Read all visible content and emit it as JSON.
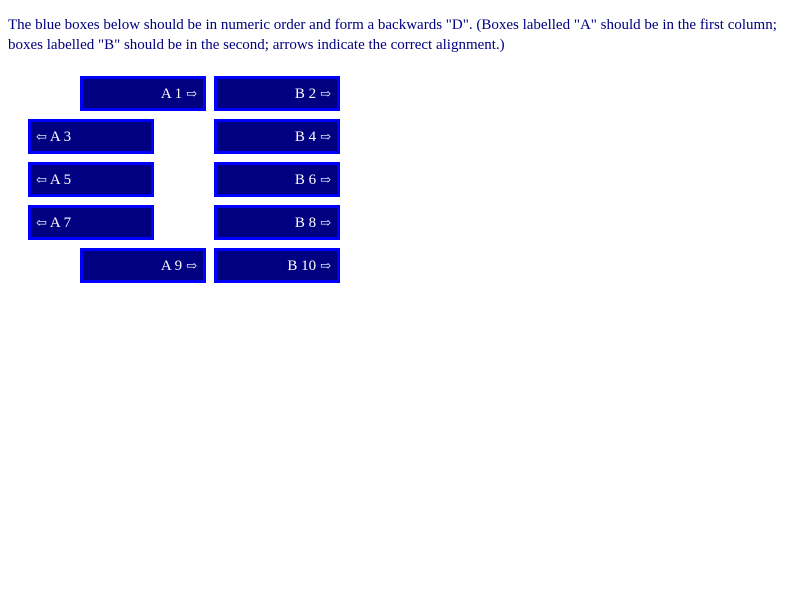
{
  "instructions": "The blue boxes below should be in numeric order and form a backwards \"D\". (Boxes labelled \"A\" should be in the first column; boxes labelled \"B\" should be in the second; arrows indicate the correct alignment.)",
  "colors": {
    "text": "#000080",
    "box_fill": "#000080",
    "box_border": "#0000ff",
    "box_text": "#ffffff"
  },
  "icons": {
    "right_arrow": "⇨",
    "left_arrow": "⇦"
  },
  "boxes": [
    {
      "label": "A 1",
      "column": "A",
      "arrow": "right"
    },
    {
      "label": "B 2",
      "column": "B",
      "arrow": "right"
    },
    {
      "label": "A 3",
      "column": "A",
      "arrow": "left"
    },
    {
      "label": "B 4",
      "column": "B",
      "arrow": "right"
    },
    {
      "label": "A 5",
      "column": "A",
      "arrow": "left"
    },
    {
      "label": "B 6",
      "column": "B",
      "arrow": "right"
    },
    {
      "label": "A 7",
      "column": "A",
      "arrow": "left"
    },
    {
      "label": "B 8",
      "column": "B",
      "arrow": "right"
    },
    {
      "label": "A 9",
      "column": "A",
      "arrow": "right"
    },
    {
      "label": "B 10",
      "column": "B",
      "arrow": "right"
    }
  ]
}
